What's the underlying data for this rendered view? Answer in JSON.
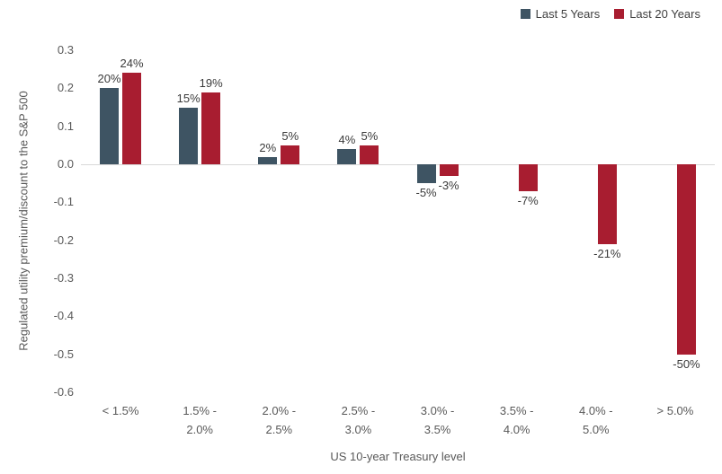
{
  "legend": {
    "items": [
      {
        "label": "Last 5 Years",
        "color": "#3e5463"
      },
      {
        "label": "Last 20 Years",
        "color": "#a81d30"
      }
    ]
  },
  "colors": {
    "zero_line": "#d9d9d9",
    "axis_text": "#595959",
    "data_label_text": "#3a3a3a"
  },
  "chart_data": {
    "type": "bar",
    "title": "",
    "xlabel": "US 10-year Treasury level",
    "ylabel": "Regulated utility premium/discount to the S&P 500",
    "ylim": [
      -0.6,
      0.3
    ],
    "grid": false,
    "legend_position": "top-right",
    "yticks": [
      0.3,
      0.2,
      0.1,
      0.0,
      -0.1,
      -0.2,
      -0.3,
      -0.4,
      -0.5,
      -0.6
    ],
    "ytick_labels": [
      "0.3",
      "0.2",
      "0.1",
      "0.0",
      "-0.1",
      "-0.2",
      "-0.3",
      "-0.4",
      "-0.5",
      "-0.6"
    ],
    "categories": [
      "< 1.5%",
      "1.5% - 2.0%",
      "2.0% - 2.5%",
      "2.5% - 3.0%",
      "3.0% - 3.5%",
      "3.5% - 4.0%",
      "4.0% - 5.0%",
      "> 5.0%"
    ],
    "category_label_lines": [
      [
        "< 1.5%"
      ],
      [
        "1.5% -",
        "2.0%"
      ],
      [
        "2.0% -",
        "2.5%"
      ],
      [
        "2.5% -",
        "3.0%"
      ],
      [
        "3.0% -",
        "3.5%"
      ],
      [
        "3.5% -",
        "4.0%"
      ],
      [
        "4.0% -",
        "5.0%"
      ],
      [
        "> 5.0%"
      ]
    ],
    "series": [
      {
        "name": "Last 5 Years",
        "color": "#3e5463",
        "values": [
          0.2,
          0.15,
          0.02,
          0.04,
          -0.05,
          null,
          null,
          null
        ],
        "labels": [
          "20%",
          "15%",
          "2%",
          "4%",
          "-5%",
          null,
          null,
          null
        ]
      },
      {
        "name": "Last 20 Years",
        "color": "#a81d30",
        "values": [
          0.24,
          0.19,
          0.05,
          0.05,
          -0.03,
          -0.07,
          -0.21,
          -0.5
        ],
        "labels": [
          "24%",
          "19%",
          "5%",
          "5%",
          "-3%",
          "-7%",
          "-21%",
          "-50%"
        ]
      }
    ]
  }
}
